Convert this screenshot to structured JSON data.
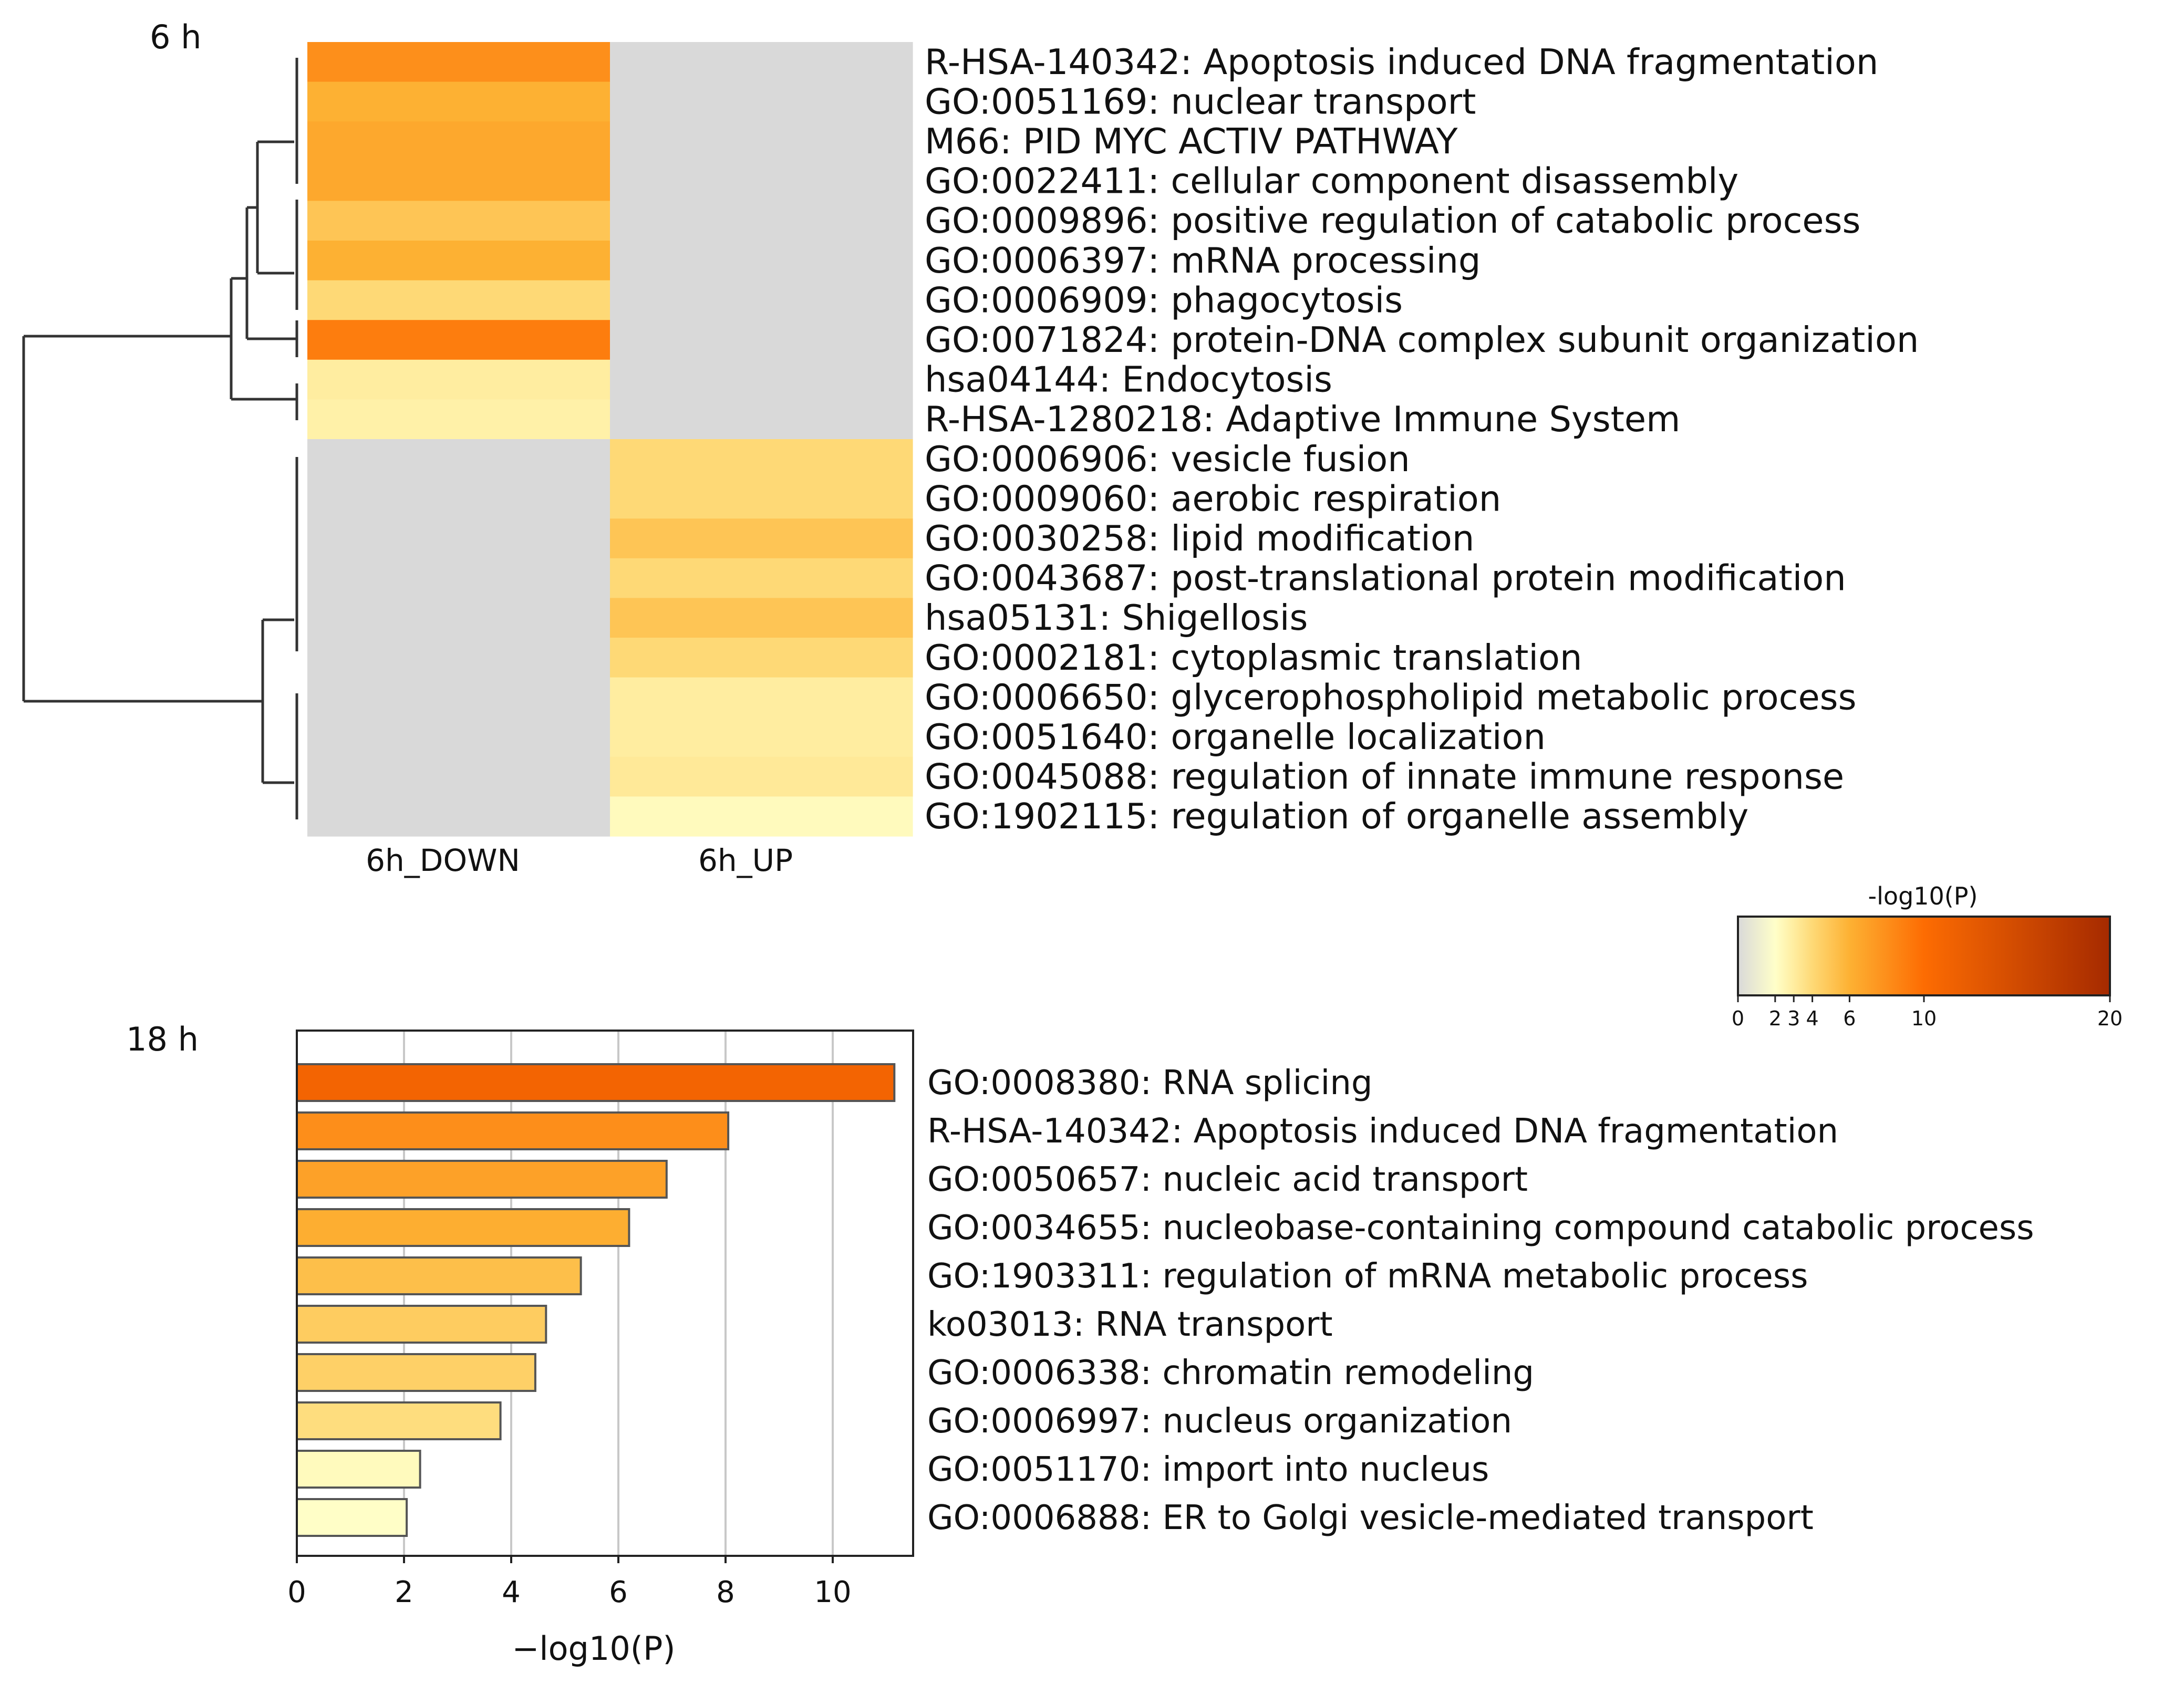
{
  "chart_data": [
    {
      "type": "heatmap",
      "title": "6 h",
      "columns": [
        "6h_DOWN",
        "6h_UP"
      ],
      "rows": [
        {
          "term": "R-HSA-140342: Apoptosis induced DNA fragmentation",
          "values": [
            8,
            null
          ]
        },
        {
          "term": "GO:0051169: nuclear transport",
          "values": [
            6,
            null
          ]
        },
        {
          "term": "M66: PID MYC ACTIV PATHWAY",
          "values": [
            6.5,
            null
          ]
        },
        {
          "term": "GO:0022411: cellular component disassembly",
          "values": [
            6.5,
            null
          ]
        },
        {
          "term": "GO:0009896: positive regulation of catabolic process",
          "values": [
            5,
            null
          ]
        },
        {
          "term": "GO:0006397: mRNA processing",
          "values": [
            6,
            null
          ]
        },
        {
          "term": "GO:0006909: phagocytosis",
          "values": [
            4,
            null
          ]
        },
        {
          "term": "GO:0071824: protein-DNA complex subunit organization",
          "values": [
            9,
            null
          ]
        },
        {
          "term": "hsa04144: Endocytosis",
          "values": [
            3,
            null
          ]
        },
        {
          "term": "R-HSA-1280218: Adaptive Immune System",
          "values": [
            2.8,
            null
          ]
        },
        {
          "term": "GO:0006906: vesicle fusion",
          "values": [
            null,
            4
          ]
        },
        {
          "term": "GO:0009060: aerobic respiration",
          "values": [
            null,
            4
          ]
        },
        {
          "term": "GO:0030258: lipid modification",
          "values": [
            null,
            5
          ]
        },
        {
          "term": "GO:0043687: post-translational protein modification",
          "values": [
            null,
            4
          ]
        },
        {
          "term": "hsa05131: Shigellosis",
          "values": [
            null,
            5
          ]
        },
        {
          "term": "GO:0002181: cytoplasmic translation",
          "values": [
            null,
            4
          ]
        },
        {
          "term": "GO:0006650: glycerophospholipid metabolic process",
          "values": [
            null,
            3
          ]
        },
        {
          "term": "GO:0051640: organelle localization",
          "values": [
            null,
            3
          ]
        },
        {
          "term": "GO:0045088: regulation of innate immune response",
          "values": [
            null,
            3.2
          ]
        },
        {
          "term": "GO:1902115: regulation of organelle assembly",
          "values": [
            null,
            2.3
          ]
        }
      ],
      "missing_color": "#d9d9d9",
      "colorbar": {
        "title": "-log10(P)",
        "ticks": [
          0,
          2,
          3,
          4,
          6,
          10,
          20
        ],
        "stops": [
          {
            "v": 0,
            "c": "#d9d9d9"
          },
          {
            "v": 2,
            "c": "#ffffc9"
          },
          {
            "v": 3,
            "c": "#ffeda0"
          },
          {
            "v": 4,
            "c": "#fed976"
          },
          {
            "v": 6,
            "c": "#fdb133"
          },
          {
            "v": 10,
            "c": "#fd6c02"
          },
          {
            "v": 20,
            "c": "#a52a00"
          }
        ]
      }
    },
    {
      "type": "bar",
      "orientation": "horizontal",
      "title": "18 h",
      "categories": [
        "GO:0008380: RNA splicing",
        "R-HSA-140342: Apoptosis induced DNA fragmentation",
        "GO:0050657: nucleic acid transport",
        "GO:0034655: nucleobase-containing compound catabolic process",
        "GO:1903311: regulation of mRNA metabolic process",
        "ko03013: RNA transport",
        "GO:0006338: chromatin remodeling",
        "GO:0006997: nucleus organization",
        "GO:0051170: import into nucleus",
        "GO:0006888: ER to Golgi vesicle-mediated transport"
      ],
      "values": [
        11.15,
        8.05,
        6.9,
        6.2,
        5.3,
        4.65,
        4.45,
        3.8,
        2.3,
        2.05
      ],
      "xlabel": "−log10(P)",
      "xlim": [
        0,
        11.5
      ],
      "xticks": [
        0,
        2,
        4,
        6,
        8,
        10
      ],
      "grid": true
    }
  ]
}
